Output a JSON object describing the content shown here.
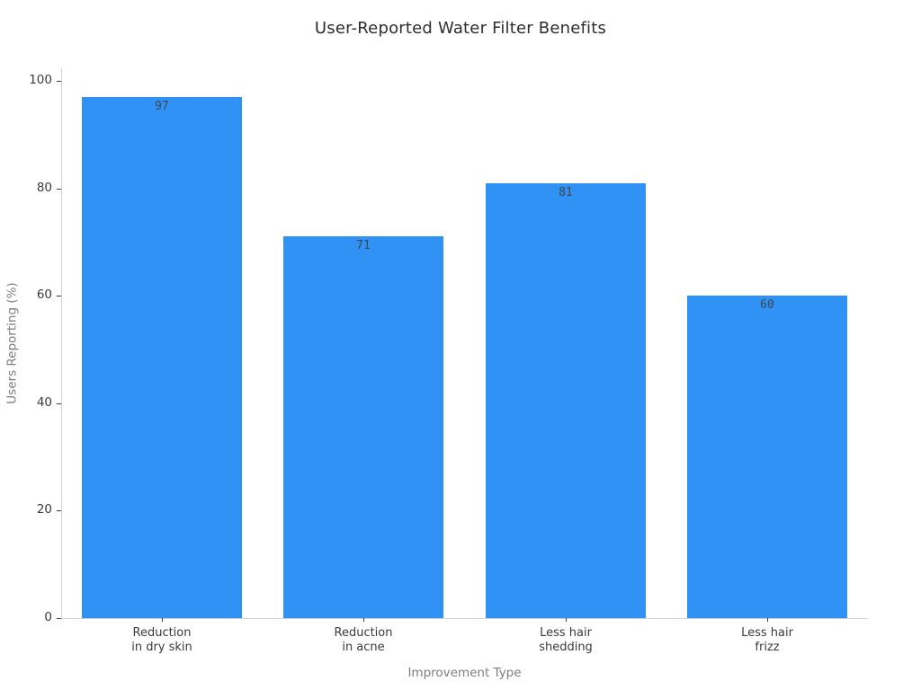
{
  "chart_data": {
    "type": "bar",
    "title": "User-Reported Water Filter Benefits",
    "xlabel": "Improvement Type",
    "ylabel": "Users Reporting (%)",
    "categories": [
      "Reduction\nin dry skin",
      "Reduction\nin acne",
      "Less hair\nshedding",
      "Less hair\nfrizz"
    ],
    "values": [
      97,
      71,
      81,
      60
    ],
    "yticks": [
      0,
      20,
      40,
      60,
      80,
      100
    ],
    "ylim": [
      0,
      100
    ],
    "grid": false,
    "legend": "none",
    "bar_color": "#3092F5",
    "value_label_color": "#3e4851"
  }
}
